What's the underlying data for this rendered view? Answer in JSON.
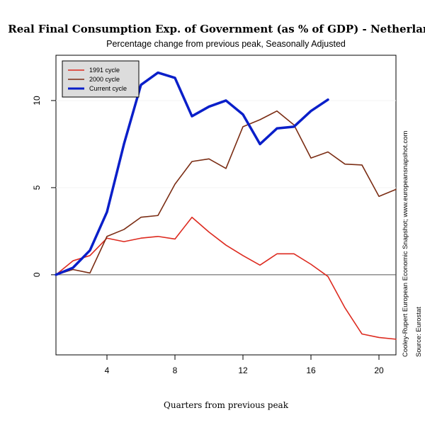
{
  "chart_data": {
    "type": "line",
    "title": "Real Final Consumption Exp. of Government (as % of GDP) - Netherlands",
    "subtitle": "Percentage change from previous peak, Seasonally Adjusted",
    "xlabel": "Quarters from previous peak",
    "ylabel": "",
    "xlim": [
      1,
      21
    ],
    "ylim": [
      -4.6,
      12.6
    ],
    "x_ticks": [
      4,
      8,
      12,
      16,
      20
    ],
    "y_ticks": [
      0,
      5,
      10
    ],
    "grid": false,
    "reference_line_y": 0,
    "legend_position": "top-left",
    "series": [
      {
        "name": "1991 cycle",
        "color": "#dd2a1f",
        "x": [
          1,
          2,
          3,
          4,
          5,
          6,
          7,
          8,
          9,
          10,
          11,
          12,
          13,
          14,
          15,
          16,
          17,
          18,
          19,
          20,
          21
        ],
        "values": [
          0.0,
          0.8,
          1.1,
          2.1,
          1.9,
          2.1,
          2.2,
          2.05,
          3.3,
          2.45,
          1.7,
          1.1,
          0.55,
          1.2,
          1.2,
          0.6,
          -0.1,
          -1.9,
          -3.4,
          -3.6,
          -3.7
        ]
      },
      {
        "name": "2000 cycle",
        "color": "#7b2d14",
        "x": [
          1,
          2,
          3,
          4,
          5,
          6,
          7,
          8,
          9,
          10,
          11,
          12,
          13,
          14,
          15,
          16,
          17,
          18,
          19,
          20,
          21
        ],
        "values": [
          0.0,
          0.3,
          0.1,
          2.2,
          2.6,
          3.3,
          3.4,
          5.2,
          6.5,
          6.65,
          6.1,
          8.5,
          8.9,
          9.4,
          8.6,
          6.7,
          7.05,
          6.35,
          6.3,
          4.5,
          4.9
        ]
      },
      {
        "name": "Current cycle",
        "color": "#0a1fc9",
        "x": [
          1,
          2,
          3,
          4,
          5,
          6,
          7,
          8,
          9,
          10,
          11,
          12,
          13,
          14,
          15,
          16,
          17
        ],
        "values": [
          0.0,
          0.4,
          1.4,
          3.6,
          7.5,
          10.9,
          11.6,
          11.3,
          9.1,
          9.65,
          10.0,
          9.2,
          7.5,
          8.4,
          8.5,
          9.4,
          10.05
        ]
      }
    ]
  },
  "side_text": {
    "line1": "Cooley-Rupert European Economic Snapshot; www.europeansnapshot.com",
    "line2": "Source: Eurostat"
  }
}
